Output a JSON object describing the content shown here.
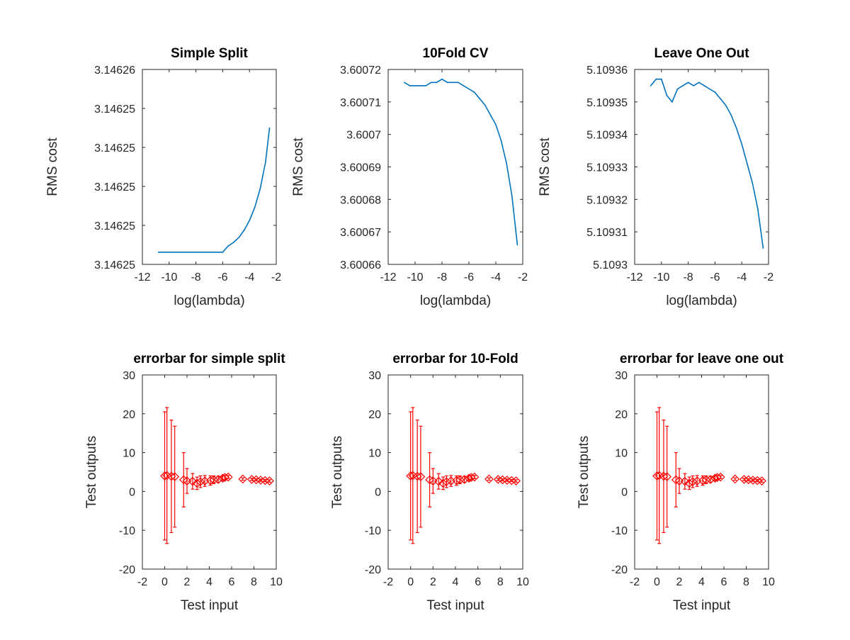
{
  "colors": {
    "line": "#0072BD",
    "errorbar": "#FF0000",
    "axis": "#262626",
    "background": "#ffffff"
  },
  "chart_data": [
    {
      "type": "line",
      "title": "Simple Split",
      "xlabel": "log(lambda)",
      "ylabel": "RMS cost",
      "xlim": [
        -12,
        -2
      ],
      "x_ticks": [
        "-12",
        "-10",
        "-8",
        "-6",
        "-4",
        "-2"
      ],
      "ylim": [
        3.146245,
        3.146261
      ],
      "y_ticks": [
        "3.14625",
        "3.14625",
        "3.14625",
        "3.14625",
        "3.14625",
        "3.14626"
      ],
      "grid": false,
      "series": [
        {
          "x": [
            -10.8,
            -10.4,
            -10.0,
            -9.6,
            -9.2,
            -8.8,
            -8.4,
            -8.0,
            -7.6,
            -7.2,
            -6.8,
            -6.4,
            -6.0,
            -5.6,
            -5.2,
            -4.8,
            -4.4,
            -4.0,
            -3.6,
            -3.2,
            -2.8,
            -2.5
          ],
          "values": [
            3.146246,
            3.146246,
            3.146246,
            3.146246,
            3.146246,
            3.146246,
            3.146246,
            3.146246,
            3.146246,
            3.146246,
            3.146246,
            3.146246,
            3.146246,
            3.1462465,
            3.1462468,
            3.1462472,
            3.1462478,
            3.1462486,
            3.1462497,
            3.1462512,
            3.1462534,
            3.1462562
          ]
        }
      ]
    },
    {
      "type": "line",
      "title": "10Fold CV",
      "xlabel": "log(lambda)",
      "ylabel": "RMS cost",
      "xlim": [
        -12,
        -2
      ],
      "x_ticks": [
        "-12",
        "-10",
        "-8",
        "-6",
        "-4",
        "-2"
      ],
      "ylim": [
        3.60066,
        3.60072
      ],
      "y_ticks": [
        "3.60066",
        "3.60067",
        "3.60068",
        "3.60069",
        "3.6007",
        "3.60071",
        "3.60072"
      ],
      "grid": false,
      "series": [
        {
          "x": [
            -10.8,
            -10.4,
            -10.0,
            -9.6,
            -9.2,
            -8.8,
            -8.4,
            -8.0,
            -7.6,
            -7.2,
            -6.8,
            -6.4,
            -6.0,
            -5.6,
            -5.2,
            -4.8,
            -4.4,
            -4.0,
            -3.6,
            -3.2,
            -2.8,
            -2.4
          ],
          "values": [
            3.600716,
            3.600715,
            3.600715,
            3.600715,
            3.600715,
            3.600716,
            3.600716,
            3.600717,
            3.600716,
            3.600716,
            3.600716,
            3.600715,
            3.600714,
            3.600713,
            3.600711,
            3.600709,
            3.600706,
            3.600703,
            3.600698,
            3.600691,
            3.600681,
            3.600666
          ]
        }
      ]
    },
    {
      "type": "line",
      "title": "Leave One Out",
      "xlabel": "log(lambda)",
      "ylabel": "RMS cost",
      "xlim": [
        -12,
        -2
      ],
      "x_ticks": [
        "-12",
        "-10",
        "-8",
        "-6",
        "-4",
        "-2"
      ],
      "ylim": [
        5.1093,
        5.10936
      ],
      "y_ticks": [
        "5.1093",
        "5.10931",
        "5.10932",
        "5.10933",
        "5.10934",
        "5.10935",
        "5.10936"
      ],
      "grid": false,
      "series": [
        {
          "x": [
            -10.8,
            -10.4,
            -10.0,
            -9.6,
            -9.2,
            -8.8,
            -8.4,
            -8.0,
            -7.6,
            -7.2,
            -6.8,
            -6.4,
            -6.0,
            -5.6,
            -5.2,
            -4.8,
            -4.4,
            -4.0,
            -3.6,
            -3.2,
            -2.8,
            -2.4
          ],
          "values": [
            5.109355,
            5.109357,
            5.109357,
            5.109352,
            5.10935,
            5.109354,
            5.109355,
            5.109356,
            5.109355,
            5.109356,
            5.109355,
            5.109354,
            5.109353,
            5.109351,
            5.109349,
            5.109346,
            5.109342,
            5.109337,
            5.109331,
            5.109325,
            5.109317,
            5.109305
          ]
        }
      ]
    },
    {
      "type": "scatter",
      "title": "errorbar for simple split",
      "xlabel": "Test input",
      "ylabel": "Test outputs",
      "xlim": [
        -2,
        10
      ],
      "x_ticks": [
        "-2",
        "0",
        "2",
        "4",
        "6",
        "8",
        "10"
      ],
      "ylim": [
        -20,
        30
      ],
      "y_ticks": [
        "-20",
        "-10",
        "0",
        "10",
        "20",
        "30"
      ],
      "grid": false,
      "marker": "diamond",
      "series": [
        {
          "x": [
            0.0,
            0.2,
            0.6,
            0.9,
            1.7,
            2.0,
            2.5,
            2.9,
            3.2,
            3.6,
            4.1,
            4.4,
            4.8,
            5.2,
            5.4,
            5.7,
            7.0,
            7.8,
            8.2,
            8.6,
            9.0,
            9.4
          ],
          "values": [
            4.0,
            4.1,
            3.9,
            3.8,
            3.0,
            2.7,
            2.6,
            2.1,
            2.5,
            2.7,
            2.8,
            3.0,
            3.1,
            3.4,
            3.6,
            3.7,
            3.2,
            3.1,
            3.0,
            2.9,
            2.8,
            2.7
          ],
          "err": [
            16.5,
            17.5,
            14.5,
            13.0,
            7.0,
            3.2,
            2.0,
            1.6,
            1.5,
            1.4,
            1.2,
            1.0,
            0.8,
            0.6,
            0.5,
            0.4,
            0.3,
            0.3,
            0.3,
            0.3,
            0.3,
            0.3
          ]
        }
      ]
    },
    {
      "type": "scatter",
      "title": "errorbar for 10-Fold",
      "xlabel": "Test input",
      "ylabel": "Test outputs",
      "xlim": [
        -2,
        10
      ],
      "x_ticks": [
        "-2",
        "0",
        "2",
        "4",
        "6",
        "8",
        "10"
      ],
      "ylim": [
        -20,
        30
      ],
      "y_ticks": [
        "-20",
        "-10",
        "0",
        "10",
        "20",
        "30"
      ],
      "grid": false,
      "marker": "diamond",
      "series": [
        {
          "x": [
            0.0,
            0.2,
            0.6,
            0.9,
            1.7,
            2.0,
            2.5,
            2.9,
            3.2,
            3.6,
            4.1,
            4.4,
            4.8,
            5.2,
            5.4,
            5.7,
            7.0,
            7.8,
            8.2,
            8.6,
            9.0,
            9.4
          ],
          "values": [
            4.0,
            4.1,
            3.9,
            3.8,
            3.0,
            2.7,
            2.6,
            2.1,
            2.5,
            2.7,
            2.8,
            3.0,
            3.1,
            3.4,
            3.6,
            3.7,
            3.2,
            3.1,
            3.0,
            2.9,
            2.8,
            2.7
          ],
          "err": [
            16.5,
            17.5,
            14.5,
            13.0,
            7.0,
            3.2,
            2.0,
            1.6,
            1.5,
            1.4,
            1.2,
            1.0,
            0.8,
            0.6,
            0.5,
            0.4,
            0.3,
            0.3,
            0.3,
            0.3,
            0.3,
            0.3
          ]
        }
      ]
    },
    {
      "type": "scatter",
      "title": "errorbar for leave one out",
      "xlabel": "Test input",
      "ylabel": "Test outputs",
      "xlim": [
        -2,
        10
      ],
      "x_ticks": [
        "-2",
        "0",
        "2",
        "4",
        "6",
        "8",
        "10"
      ],
      "ylim": [
        -20,
        30
      ],
      "y_ticks": [
        "-20",
        "-10",
        "0",
        "10",
        "20",
        "30"
      ],
      "grid": false,
      "marker": "diamond",
      "series": [
        {
          "x": [
            0.0,
            0.2,
            0.6,
            0.9,
            1.7,
            2.0,
            2.5,
            2.9,
            3.2,
            3.6,
            4.1,
            4.4,
            4.8,
            5.2,
            5.4,
            5.7,
            7.0,
            7.8,
            8.2,
            8.6,
            9.0,
            9.4
          ],
          "values": [
            4.0,
            4.1,
            3.9,
            3.8,
            3.0,
            2.7,
            2.6,
            2.1,
            2.5,
            2.7,
            2.8,
            3.0,
            3.1,
            3.4,
            3.6,
            3.7,
            3.2,
            3.1,
            3.0,
            2.9,
            2.8,
            2.7
          ],
          "err": [
            16.5,
            17.5,
            14.5,
            13.0,
            7.0,
            3.2,
            2.0,
            1.6,
            1.5,
            1.4,
            1.2,
            1.0,
            0.8,
            0.6,
            0.5,
            0.4,
            0.3,
            0.3,
            0.3,
            0.3,
            0.3,
            0.3
          ]
        }
      ]
    }
  ]
}
